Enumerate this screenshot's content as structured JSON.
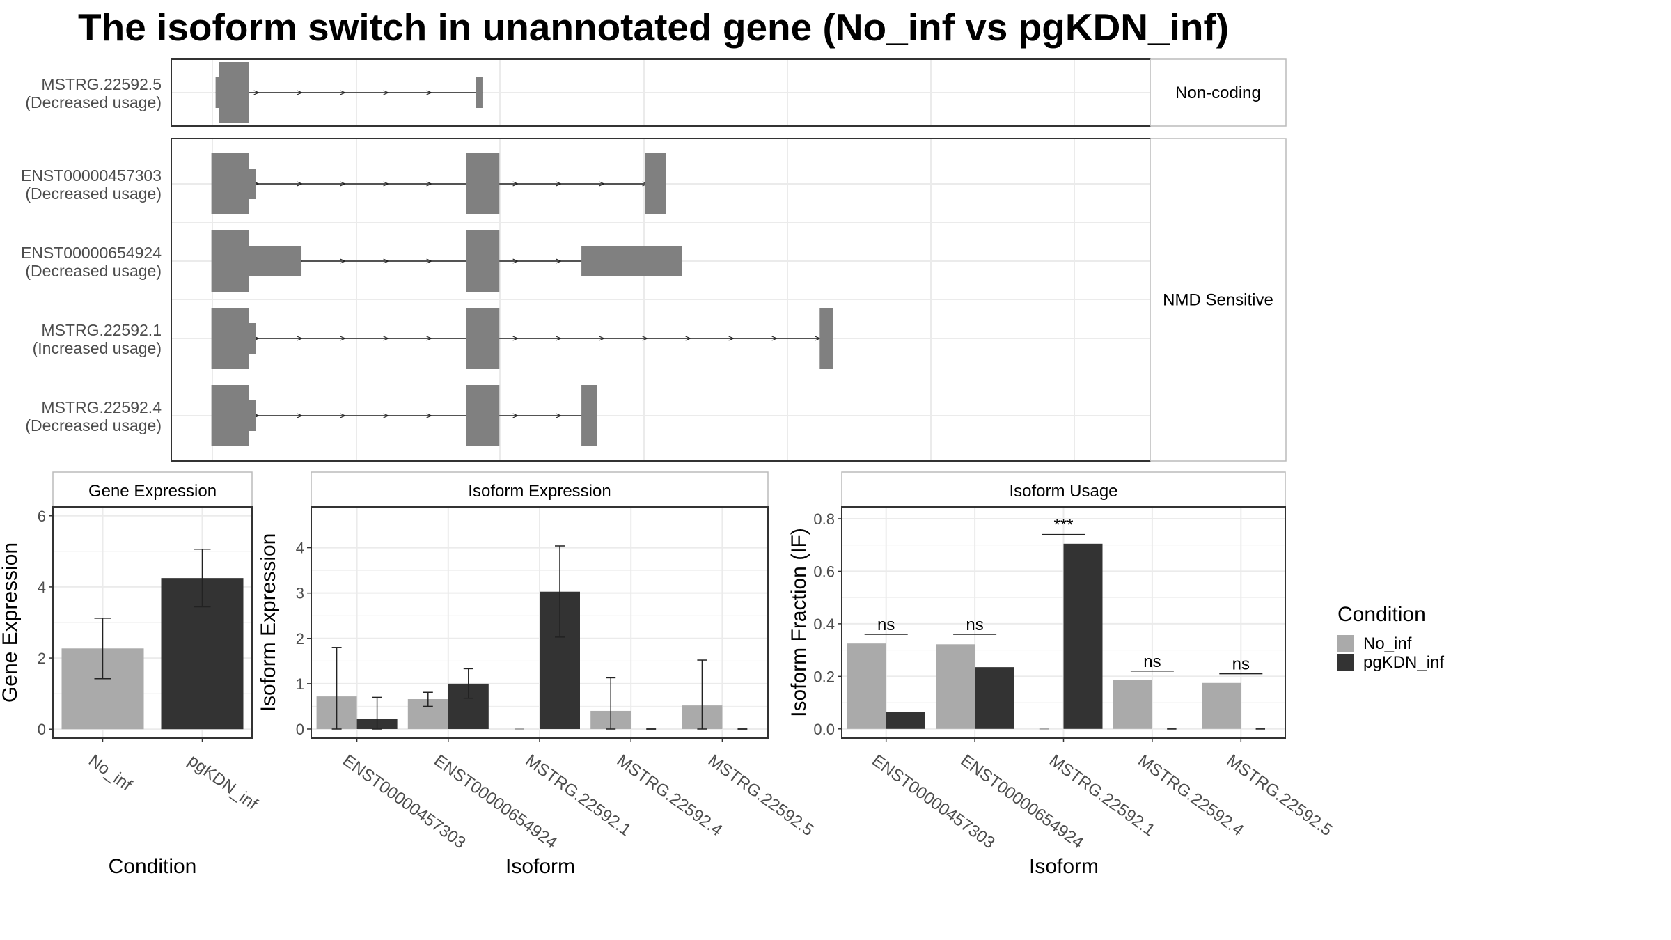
{
  "title": "The isoform switch in unannotated gene (No_inf vs pgKDN_inf)",
  "colors": {
    "No_inf": "#aaaaaa",
    "pgKDN_inf": "#333333",
    "exon": "#808080"
  },
  "legend": {
    "title": "Condition",
    "items": [
      {
        "label": "No_inf",
        "color": "#aaaaaa"
      },
      {
        "label": "pgKDN_inf",
        "color": "#333333"
      }
    ]
  },
  "structure": {
    "type": "transcript-structure",
    "groups": [
      {
        "label": "Non-coding",
        "transcripts": [
          {
            "name": "MSTRG.22592.5",
            "usage": "(Decreased usage)",
            "exons": [
              {
                "start": 0.06,
                "end": 0.57,
                "kind": "utr"
              },
              {
                "start": 0.57,
                "end": 0.11,
                "kind": "cds"
              },
              {
                "start": 4.06,
                "end": 4.16,
                "kind": "utr"
              }
            ]
          }
        ]
      },
      {
        "label": "NMD Sensitive",
        "transcripts": [
          {
            "name": "ENST00000457303",
            "usage": "(Decreased usage)",
            "exons": [
              {
                "start": 0.06,
                "end": 0.57,
                "kind": "cds"
              },
              {
                "start": 0.57,
                "end": 0.68,
                "kind": "utr"
              },
              {
                "start": 3.91,
                "end": 4.42,
                "kind": "cds"
              },
              {
                "start": 6.66,
                "end": 6.98,
                "kind": "cds"
              }
            ]
          },
          {
            "name": "ENST00000654924",
            "usage": "(Decreased usage)",
            "exons": [
              {
                "start": 0.06,
                "end": 0.57,
                "kind": "cds"
              },
              {
                "start": 0.57,
                "end": 1.38,
                "kind": "utr"
              },
              {
                "start": 3.91,
                "end": 4.42,
                "kind": "cds"
              },
              {
                "start": 5.68,
                "end": 7.22,
                "kind": "utr"
              }
            ]
          },
          {
            "name": "MSTRG.22592.1",
            "usage": "(Increased usage)",
            "exons": [
              {
                "start": 0.06,
                "end": 0.57,
                "kind": "cds"
              },
              {
                "start": 0.57,
                "end": 0.68,
                "kind": "utr"
              },
              {
                "start": 3.91,
                "end": 4.42,
                "kind": "cds"
              },
              {
                "start": 9.34,
                "end": 9.54,
                "kind": "cds"
              }
            ]
          },
          {
            "name": "MSTRG.22592.4",
            "usage": "(Decreased usage)",
            "exons": [
              {
                "start": 0.06,
                "end": 0.57,
                "kind": "cds"
              },
              {
                "start": 0.57,
                "end": 0.68,
                "kind": "utr"
              },
              {
                "start": 3.91,
                "end": 4.42,
                "kind": "cds"
              },
              {
                "start": 5.68,
                "end": 5.92,
                "kind": "cds"
              }
            ]
          }
        ]
      }
    ]
  },
  "chart_data": [
    {
      "type": "bar",
      "panel": "Gene Expression",
      "categories": [
        "No_inf",
        "pgKDN_inf"
      ],
      "values": [
        2.27,
        4.25
      ],
      "err_low": [
        1.42,
        3.44
      ],
      "err_high": [
        3.12,
        5.06
      ],
      "xlabel": "Condition",
      "ylabel": "Gene Expression",
      "ylim": [
        -0.25,
        6.25
      ],
      "yticks": [
        0,
        2,
        4,
        6
      ]
    },
    {
      "type": "bar",
      "panel": "Isoform Expression",
      "categories": [
        "ENST00000457303",
        "ENST00000654924",
        "MSTRG.22592.1",
        "MSTRG.22592.4",
        "MSTRG.22592.5"
      ],
      "series": [
        {
          "name": "No_inf",
          "values": [
            0.72,
            0.66,
            0.0,
            0.4,
            0.52
          ],
          "err_low": [
            0.0,
            0.5,
            0.0,
            0.0,
            0.0
          ],
          "err_high": [
            1.8,
            0.81,
            0.0,
            1.13,
            1.52
          ]
        },
        {
          "name": "pgKDN_inf",
          "values": [
            0.23,
            1.0,
            3.03,
            0.0,
            0.0
          ],
          "err_low": [
            0.0,
            0.68,
            2.03,
            0.0,
            0.0
          ],
          "err_high": [
            0.7,
            1.33,
            4.04,
            0.0,
            0.0
          ]
        }
      ],
      "xlabel": "Isoform",
      "ylabel": "Isoform Expression",
      "ylim": [
        -0.2,
        4.9
      ],
      "yticks": [
        0,
        1,
        2,
        3,
        4
      ]
    },
    {
      "type": "bar",
      "panel": "Isoform Usage",
      "categories": [
        "ENST00000457303",
        "ENST00000654924",
        "MSTRG.22592.1",
        "MSTRG.22592.4",
        "MSTRG.22592.5"
      ],
      "series": [
        {
          "name": "No_inf",
          "values": [
            0.325,
            0.322,
            0.0,
            0.187,
            0.175
          ]
        },
        {
          "name": "pgKDN_inf",
          "values": [
            0.065,
            0.235,
            0.705,
            0.0,
            0.0
          ]
        }
      ],
      "significance": [
        "ns",
        "ns",
        "***",
        "ns",
        "ns"
      ],
      "sig_line_y": [
        0.36,
        0.36,
        0.74,
        0.22,
        0.21
      ],
      "xlabel": "Isoform",
      "ylabel": "Isoform Fraction (IF)",
      "ylim": [
        -0.035,
        0.845
      ],
      "yticks": [
        0.0,
        0.2,
        0.4,
        0.6,
        0.8
      ]
    }
  ]
}
